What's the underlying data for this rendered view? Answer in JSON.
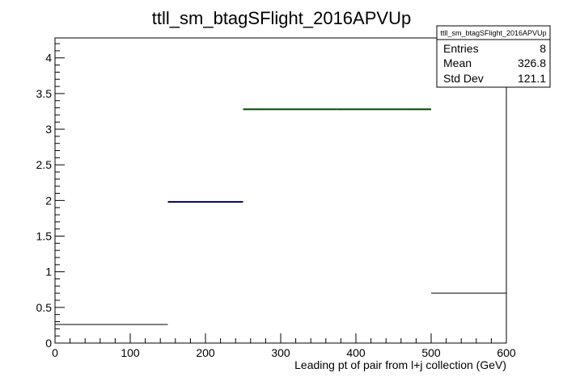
{
  "chart_data": {
    "type": "histogram",
    "title": "ttll_sm_btagSFlight_2016APVUp",
    "xlabel": "Leading pt of pair from l+j collection (GeV)",
    "ylabel": "",
    "xlim": [
      0,
      600
    ],
    "ylim": [
      0,
      4.28
    ],
    "x_ticks": [
      "0",
      "100",
      "200",
      "300",
      "400",
      "500",
      "600"
    ],
    "y_ticks": [
      "0",
      "0.5",
      "1",
      "1.5",
      "2",
      "2.5",
      "3",
      "3.5",
      "4"
    ],
    "grid": false,
    "bins": [
      {
        "low": 0,
        "high": 150,
        "value": 0.26,
        "color": "#000000"
      },
      {
        "low": 150,
        "high": 250,
        "value": 1.98,
        "color": "#000055"
      },
      {
        "low": 250,
        "high": 375,
        "value": 3.28,
        "color": "#004400"
      },
      {
        "low": 375,
        "high": 500,
        "value": 3.28,
        "color": "#004400"
      },
      {
        "low": 500,
        "high": 600,
        "value": 0.7,
        "color": "#000000"
      }
    ],
    "stats": {
      "name": "ttll_sm_btagSFlight_2016APVUp",
      "rows": [
        {
          "label": "Entries",
          "value": "8"
        },
        {
          "label": "Mean",
          "value": "326.8"
        },
        {
          "label": "Std Dev",
          "value": "121.1"
        }
      ]
    }
  }
}
